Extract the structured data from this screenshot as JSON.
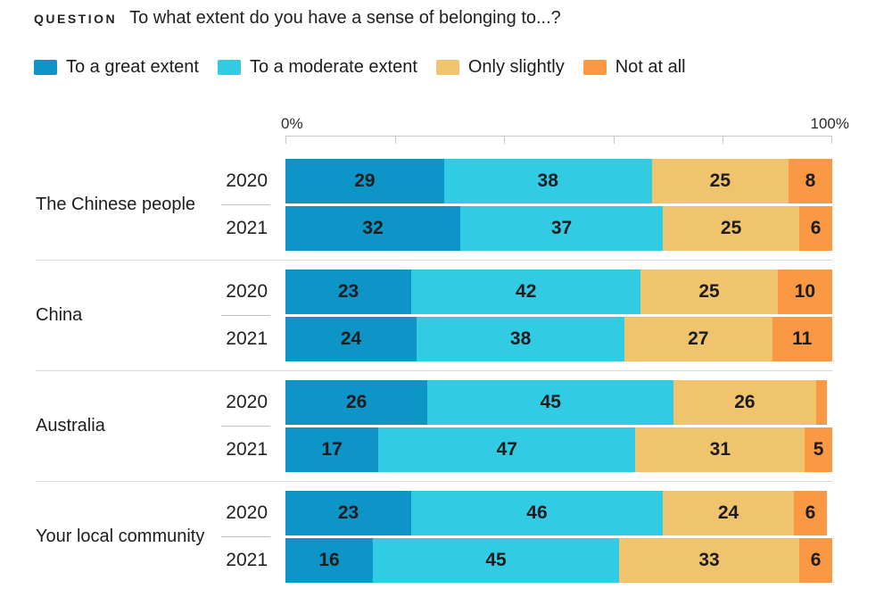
{
  "header": {
    "kicker": "QUESTION",
    "title": "To what extent do you have a sense of belonging to...?"
  },
  "legend": [
    {
      "label": "To a great extent",
      "color": "#0d95c8"
    },
    {
      "label": "To a moderate extent",
      "color": "#31cbe4"
    },
    {
      "label": "Only slightly",
      "color": "#f0c36d"
    },
    {
      "label": "Not at all",
      "color": "#fa9843"
    }
  ],
  "chart_data": {
    "type": "bar",
    "orientation": "horizontal",
    "stacked": true,
    "title": "To what extent do you have a sense of belonging to...?",
    "axis": {
      "min_label": "0%",
      "max_label": "100%",
      "range": [
        0,
        100
      ],
      "ticks_percent": [
        0,
        20,
        40,
        60,
        80,
        100
      ],
      "grid": false
    },
    "series_names": [
      "To a great extent",
      "To a moderate extent",
      "Only slightly",
      "Not at all"
    ],
    "series_colors": [
      "#0d95c8",
      "#31cbe4",
      "#f0c36d",
      "#fa9843"
    ],
    "groups": [
      {
        "category": "The Chinese people",
        "rows": [
          {
            "year": "2020",
            "values": [
              29,
              38,
              25,
              8
            ],
            "labels": [
              "29",
              "38",
              "25",
              "8"
            ]
          },
          {
            "year": "2021",
            "values": [
              32,
              37,
              25,
              6
            ],
            "labels": [
              "32",
              "37",
              "25",
              "6"
            ]
          }
        ]
      },
      {
        "category": "China",
        "rows": [
          {
            "year": "2020",
            "values": [
              23,
              42,
              25,
              10
            ],
            "labels": [
              "23",
              "42",
              "25",
              "10"
            ]
          },
          {
            "year": "2021",
            "values": [
              24,
              38,
              27,
              11
            ],
            "labels": [
              "24",
              "38",
              "27",
              "11"
            ]
          }
        ]
      },
      {
        "category": "Australia",
        "rows": [
          {
            "year": "2020",
            "values": [
              26,
              45,
              26,
              2
            ],
            "labels": [
              "26",
              "45",
              "26",
              ""
            ]
          },
          {
            "year": "2021",
            "values": [
              17,
              47,
              31,
              5
            ],
            "labels": [
              "17",
              "47",
              "31",
              "5"
            ]
          }
        ]
      },
      {
        "category": "Your local community",
        "rows": [
          {
            "year": "2020",
            "values": [
              23,
              46,
              24,
              6
            ],
            "labels": [
              "23",
              "46",
              "24",
              "6"
            ]
          },
          {
            "year": "2021",
            "values": [
              16,
              45,
              33,
              6
            ],
            "labels": [
              "16",
              "45",
              "33",
              "6"
            ]
          }
        ]
      }
    ]
  }
}
